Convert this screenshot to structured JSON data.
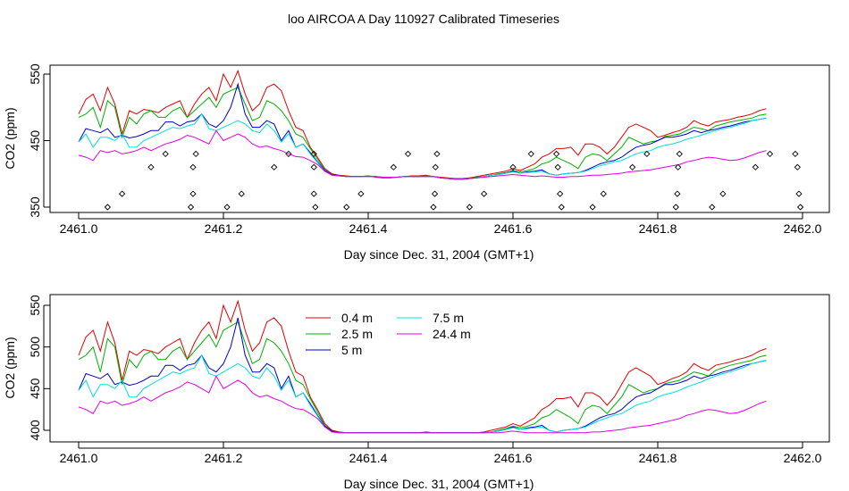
{
  "figure_title": "loo AIRCOA A  Day 110927  Calibrated Timeseries",
  "colors": {
    "0.4 m": "#e00000",
    "2.5 m": "#00b000",
    "5 m": "#0000c8",
    "7.5 m": "#00e0e0",
    "24.4 m": "#e000e0"
  },
  "chart_data": [
    {
      "type": "line",
      "panel": "top",
      "xlabel": "Day since Dec. 31, 2004 (GMT+1)",
      "ylabel": "CO2 (ppm)",
      "xlim": [
        2461.0,
        2462.0
      ],
      "ylim": [
        350,
        550
      ],
      "xticks": [
        "2461.0",
        "2461.2",
        "2461.4",
        "2461.6",
        "2461.8",
        "2462.0"
      ],
      "yticks": [
        "350",
        "450",
        "550"
      ],
      "ytick_values": [
        350,
        450,
        550
      ],
      "grid": false,
      "series": [
        {
          "name": "0.4 m",
          "x_start": 2461.0,
          "x_step": 0.01,
          "values": [
            490,
            512,
            520,
            495,
            530,
            505,
            460,
            495,
            490,
            497,
            495,
            492,
            500,
            505,
            510,
            485,
            505,
            520,
            530,
            510,
            550,
            530,
            555,
            520,
            495,
            505,
            530,
            535,
            525,
            495,
            470,
            465,
            440,
            425,
            408,
            400,
            398,
            397,
            396,
            396,
            397,
            395,
            394,
            394,
            395,
            396,
            397,
            397,
            398,
            396,
            395,
            394,
            393,
            393,
            394,
            396,
            398,
            400,
            402,
            404,
            408,
            405,
            410,
            415,
            425,
            430,
            438,
            438,
            440,
            428,
            445,
            445,
            440,
            430,
            440,
            455,
            470,
            475,
            470,
            465,
            455,
            458,
            462,
            465,
            470,
            480,
            475,
            472,
            478,
            480,
            482,
            485,
            487,
            490,
            495,
            498
          ]
        },
        {
          "name": "2.5 m",
          "x_start": 2461.0,
          "x_step": 0.01,
          "values": [
            485,
            490,
            500,
            470,
            510,
            500,
            455,
            485,
            475,
            490,
            495,
            485,
            485,
            495,
            500,
            485,
            495,
            505,
            515,
            500,
            520,
            525,
            530,
            505,
            480,
            485,
            510,
            505,
            495,
            480,
            460,
            455,
            438,
            422,
            406,
            399,
            397,
            396,
            396,
            396,
            397,
            396,
            395,
            395,
            395,
            396,
            396,
            396,
            397,
            396,
            394,
            393,
            392,
            392,
            393,
            395,
            396,
            398,
            400,
            402,
            405,
            403,
            405,
            408,
            415,
            418,
            425,
            420,
            415,
            408,
            425,
            430,
            428,
            420,
            430,
            440,
            455,
            450,
            445,
            448,
            450,
            456,
            458,
            460,
            465,
            470,
            468,
            465,
            472,
            475,
            478,
            480,
            482,
            484,
            488,
            490
          ]
        },
        {
          "name": "5 m",
          "x_start": 2461.0,
          "x_step": 0.01,
          "values": [
            448,
            468,
            465,
            462,
            468,
            455,
            458,
            454,
            456,
            460,
            465,
            465,
            478,
            478,
            472,
            478,
            480,
            490,
            475,
            470,
            480,
            500,
            535,
            490,
            470,
            470,
            480,
            475,
            450,
            465,
            440,
            445,
            432,
            418,
            405,
            399,
            397,
            396,
            396,
            396,
            396,
            396,
            395,
            395,
            395,
            396,
            396,
            396,
            396,
            396,
            394,
            393,
            392,
            392,
            393,
            394,
            396,
            398,
            399,
            401,
            404,
            401,
            403,
            404,
            406,
            400,
            398,
            400,
            401,
            402,
            405,
            410,
            415,
            418,
            420,
            425,
            433,
            440,
            443,
            445,
            450,
            455,
            455,
            457,
            460,
            465,
            462,
            465,
            467,
            470,
            472,
            475,
            478,
            480,
            482,
            484
          ]
        },
        {
          "name": "7.5 m",
          "x_start": 2461.0,
          "x_step": 0.01,
          "values": [
            448,
            460,
            440,
            455,
            455,
            450,
            460,
            440,
            440,
            450,
            455,
            460,
            465,
            470,
            468,
            472,
            475,
            490,
            468,
            465,
            470,
            475,
            480,
            475,
            465,
            462,
            475,
            465,
            448,
            460,
            440,
            445,
            430,
            417,
            404,
            398,
            397,
            396,
            396,
            396,
            396,
            396,
            395,
            395,
            395,
            396,
            396,
            396,
            396,
            396,
            394,
            393,
            392,
            392,
            393,
            394,
            396,
            398,
            399,
            401,
            403,
            401,
            402,
            403,
            404,
            400,
            398,
            400,
            401,
            402,
            404,
            408,
            412,
            415,
            418,
            420,
            425,
            430,
            433,
            435,
            440,
            443,
            445,
            448,
            452,
            455,
            458,
            462,
            465,
            468,
            470,
            473,
            476,
            480,
            482,
            484
          ]
        },
        {
          "name": "24.4 m",
          "x_start": 2461.0,
          "x_step": 0.01,
          "values": [
            428,
            425,
            420,
            435,
            432,
            435,
            430,
            432,
            435,
            440,
            435,
            440,
            445,
            448,
            452,
            458,
            455,
            450,
            445,
            465,
            450,
            455,
            460,
            455,
            445,
            440,
            442,
            438,
            435,
            430,
            426,
            425,
            420,
            414,
            404,
            398,
            397,
            396,
            396,
            396,
            396,
            396,
            395,
            395,
            395,
            396,
            396,
            396,
            396,
            396,
            394,
            393,
            392,
            392,
            393,
            394,
            395,
            396,
            397,
            398,
            399,
            398,
            397,
            396,
            397,
            396,
            395,
            395,
            396,
            396,
            397,
            398,
            398,
            399,
            400,
            401,
            403,
            404,
            405,
            406,
            408,
            410,
            412,
            414,
            418,
            420,
            423,
            425,
            424,
            422,
            420,
            421,
            424,
            428,
            432,
            435
          ]
        }
      ],
      "markers": {
        "symbol": "diamond",
        "points": [
          [
            2461.04,
            350
          ],
          [
            2461.06,
            370
          ],
          [
            2461.1,
            410
          ],
          [
            2461.12,
            430
          ],
          [
            2461.155,
            350
          ],
          [
            2461.158,
            370
          ],
          [
            2461.158,
            410
          ],
          [
            2461.162,
            430
          ],
          [
            2461.205,
            350
          ],
          [
            2461.225,
            370
          ],
          [
            2461.27,
            410
          ],
          [
            2461.29,
            430
          ],
          [
            2461.325,
            410
          ],
          [
            2461.325,
            430
          ],
          [
            2461.325,
            370
          ],
          [
            2461.327,
            350
          ],
          [
            2461.37,
            350
          ],
          [
            2461.39,
            370
          ],
          [
            2461.435,
            410
          ],
          [
            2461.455,
            430
          ],
          [
            2461.49,
            350
          ],
          [
            2461.492,
            370
          ],
          [
            2461.493,
            410
          ],
          [
            2461.495,
            430
          ],
          [
            2461.54,
            350
          ],
          [
            2461.56,
            370
          ],
          [
            2461.6,
            410
          ],
          [
            2461.625,
            430
          ],
          [
            2461.66,
            430
          ],
          [
            2461.662,
            410
          ],
          [
            2461.665,
            370
          ],
          [
            2461.667,
            350
          ],
          [
            2461.71,
            350
          ],
          [
            2461.725,
            370
          ],
          [
            2461.765,
            410
          ],
          [
            2461.785,
            430
          ],
          [
            2461.825,
            350
          ],
          [
            2461.827,
            370
          ],
          [
            2461.828,
            410
          ],
          [
            2461.83,
            430
          ],
          [
            2461.875,
            350
          ],
          [
            2461.89,
            370
          ],
          [
            2461.935,
            410
          ],
          [
            2461.955,
            430
          ],
          [
            2461.99,
            430
          ],
          [
            2461.993,
            410
          ],
          [
            2461.995,
            370
          ],
          [
            2461.997,
            350
          ]
        ]
      }
    },
    {
      "type": "line",
      "panel": "bottom",
      "xlabel": "Day since Dec. 31, 2004 (GMT+1)",
      "ylabel": "CO2 (ppm)",
      "xlim": [
        2461.0,
        2462.0
      ],
      "ylim": [
        400,
        550
      ],
      "xticks": [
        "2461.0",
        "2461.2",
        "2461.4",
        "2461.6",
        "2461.8",
        "2462.0"
      ],
      "yticks": [
        "400",
        "450",
        "500",
        "550"
      ],
      "ytick_values": [
        400,
        450,
        500,
        550
      ],
      "grid": false,
      "legend_placement": "top-center",
      "legend": [
        "0.4 m",
        "2.5 m",
        "5 m",
        "7.5 m",
        "24.4 m"
      ],
      "series_from": "top"
    }
  ]
}
